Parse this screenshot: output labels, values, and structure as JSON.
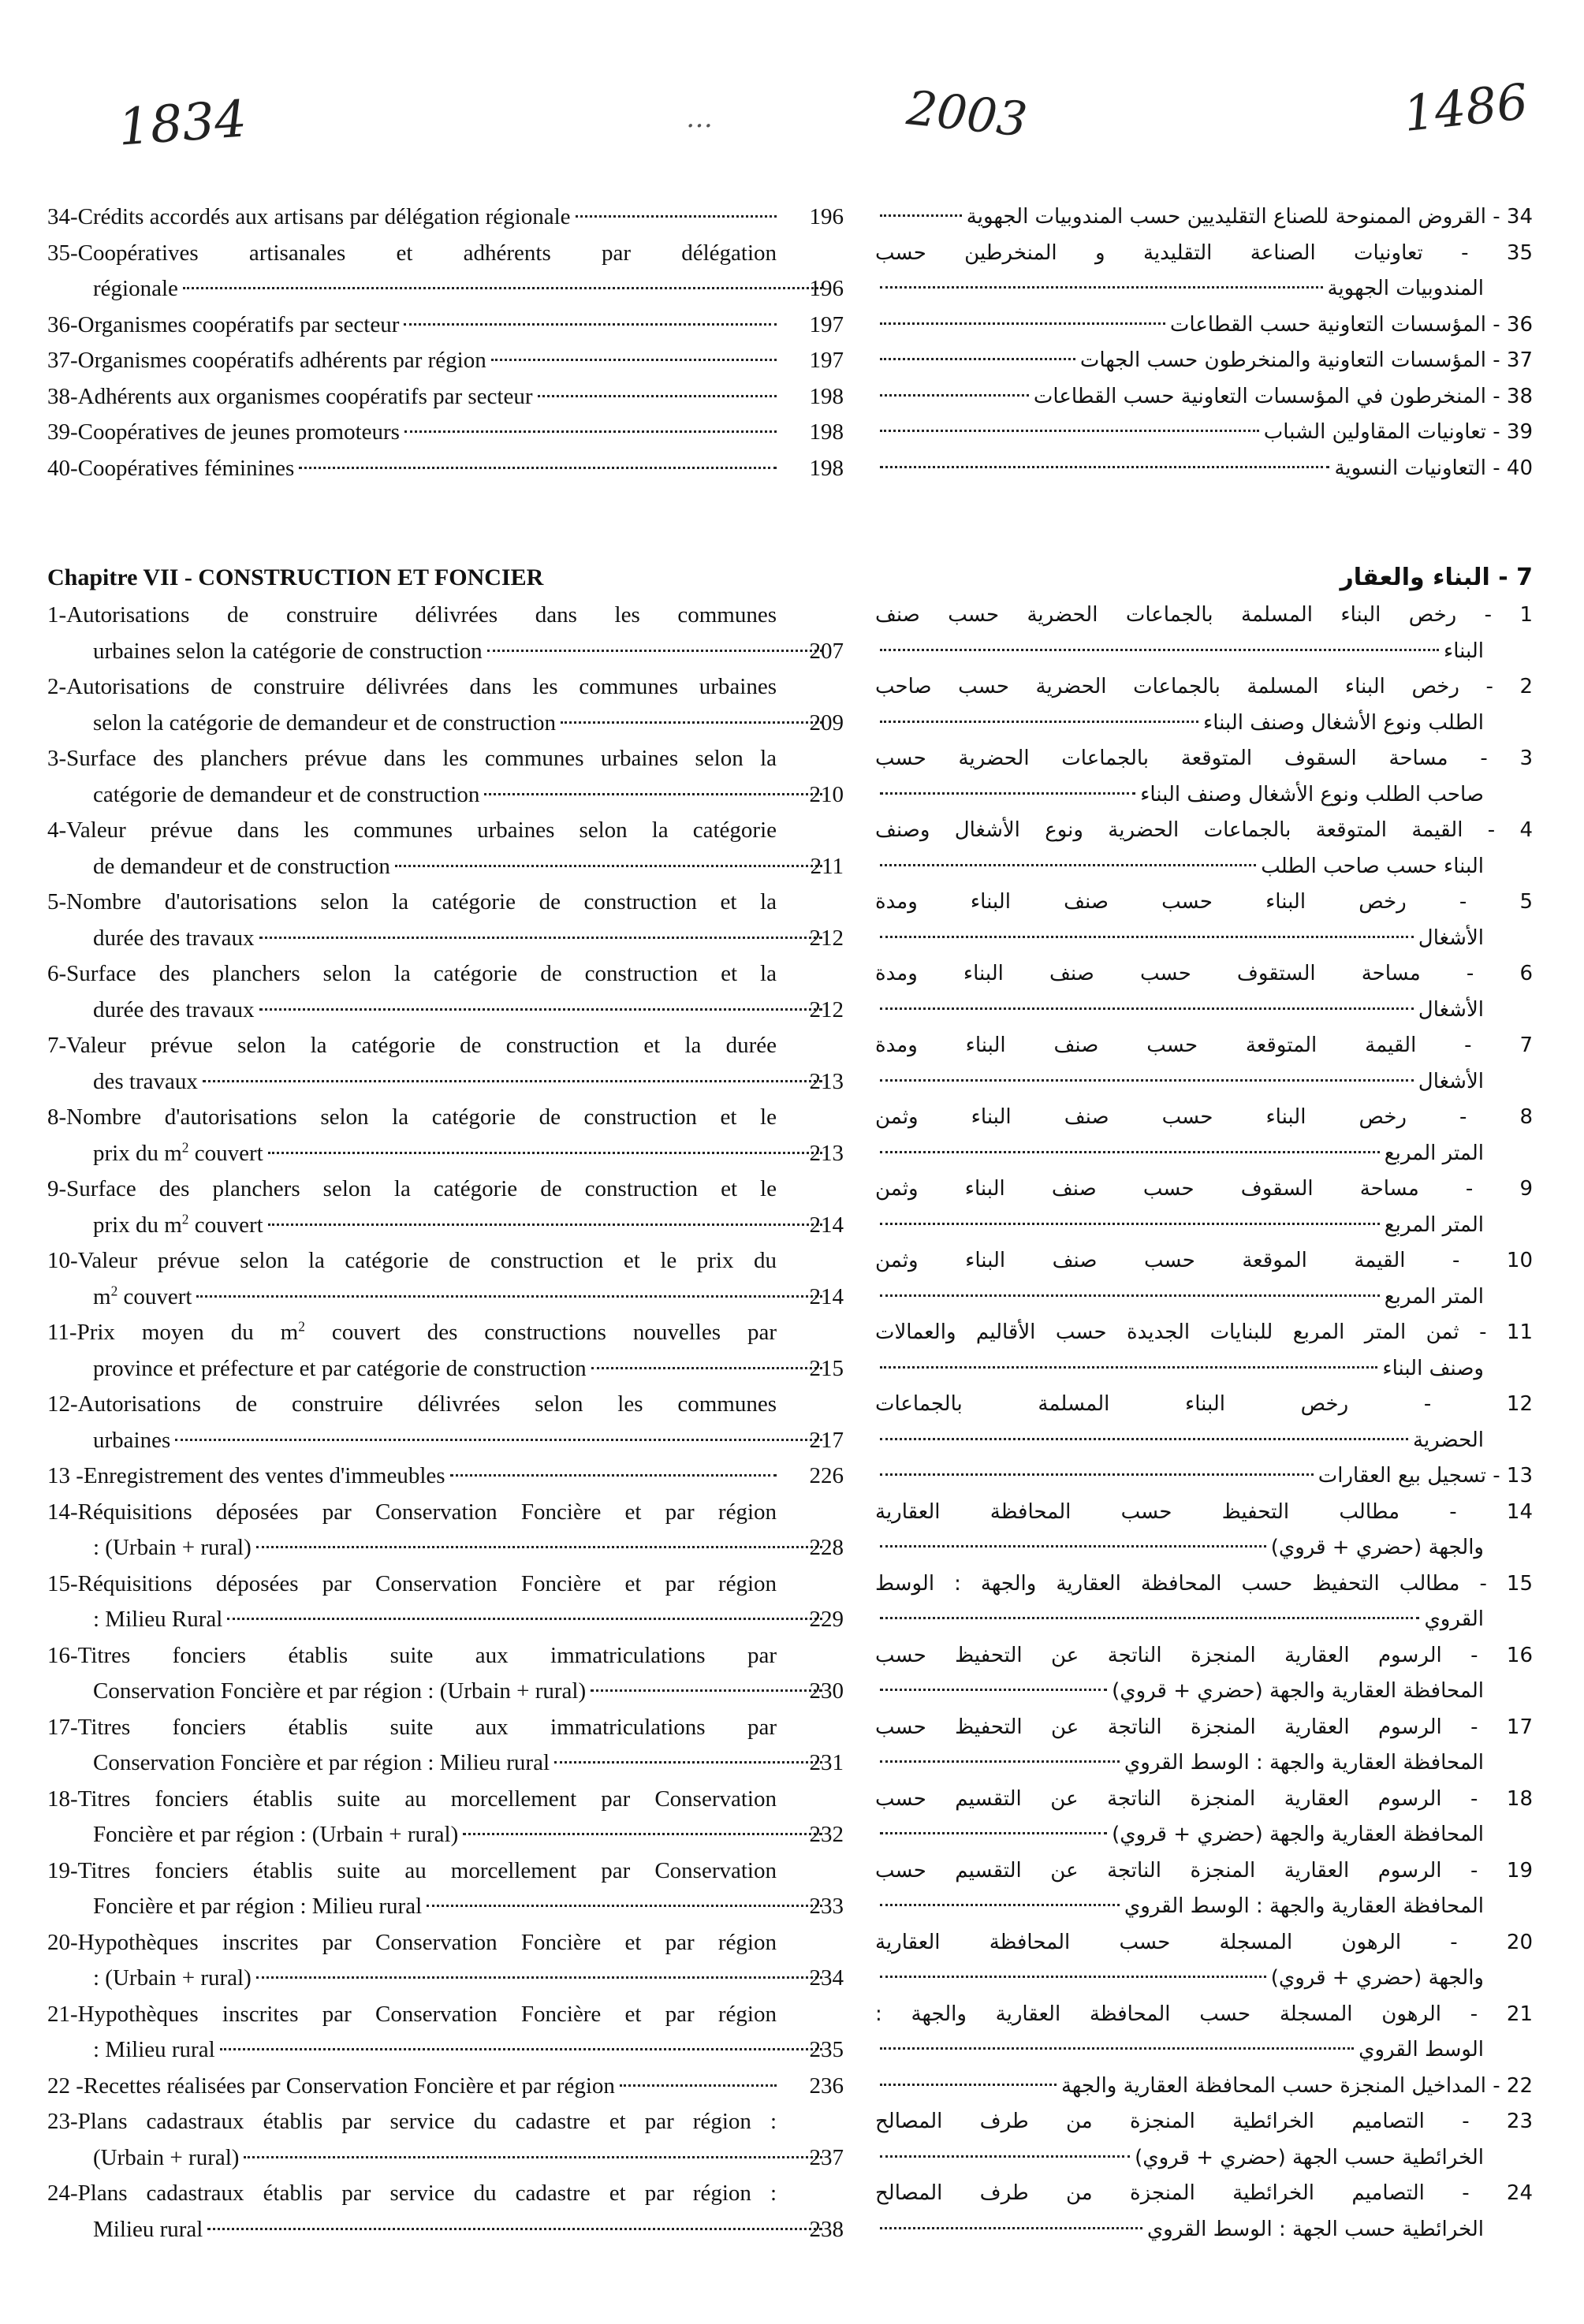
{
  "handwritten_annotations": [
    "1834",
    "…",
    "2003",
    "1486"
  ],
  "french": {
    "entries_before": [
      {
        "lines": [
          "34-Crédits accordés aux artisans par délégation régionale"
        ],
        "page": "196"
      },
      {
        "lines": [
          "35-Coopératives artisanales et adhérents par délégation",
          "régionale"
        ],
        "page": "196"
      },
      {
        "lines": [
          "36-Organismes coopératifs par secteur"
        ],
        "page": "197"
      },
      {
        "lines": [
          "37-Organismes coopératifs adhérents par région"
        ],
        "page": "197"
      },
      {
        "lines": [
          "38-Adhérents aux organismes coopératifs par secteur"
        ],
        "page": "198"
      },
      {
        "lines": [
          "39-Coopératives de jeunes promoteurs"
        ],
        "page": "198"
      },
      {
        "lines": [
          "40-Coopératives féminines"
        ],
        "page": "198"
      }
    ],
    "chapter_title": "Chapitre VII - CONSTRUCTION ET FONCIER",
    "entries": [
      {
        "lines": [
          "1-Autorisations de construire délivrées dans les communes",
          "urbaines selon la catégorie de construction"
        ],
        "page": "207"
      },
      {
        "lines": [
          "2-Autorisations de construire délivrées dans les communes urbaines",
          "selon la catégorie de demandeur et de construction"
        ],
        "page": "209"
      },
      {
        "lines": [
          "3-Surface des planchers prévue dans les communes urbaines selon la",
          "catégorie de demandeur et de construction"
        ],
        "page": "210"
      },
      {
        "lines": [
          "4-Valeur prévue dans les communes urbaines selon la catégorie",
          "de demandeur et de construction"
        ],
        "page": "211"
      },
      {
        "lines": [
          "5-Nombre d'autorisations selon la catégorie de construction et la",
          "durée des travaux"
        ],
        "page": "212"
      },
      {
        "lines": [
          "6-Surface des planchers selon la catégorie de construction et la",
          "durée des travaux"
        ],
        "page": "212"
      },
      {
        "lines": [
          "7-Valeur prévue selon la catégorie de construction et la durée",
          "des travaux"
        ],
        "page": "213"
      },
      {
        "lines": [
          "8-Nombre d'autorisations selon la catégorie de construction et le",
          "prix du m² couvert"
        ],
        "page": "213"
      },
      {
        "lines": [
          "9-Surface des planchers selon la catégorie de construction et le",
          "prix du m² couvert"
        ],
        "page": "214"
      },
      {
        "lines": [
          "10-Valeur prévue selon la catégorie de construction et le prix du",
          "m² couvert"
        ],
        "page": "214"
      },
      {
        "lines": [
          "11-Prix moyen du m² couvert des constructions nouvelles par",
          "province et préfecture et par catégorie de construction"
        ],
        "page": "215"
      },
      {
        "lines": [
          "12-Autorisations de construire délivrées selon les communes",
          "urbaines"
        ],
        "page": "217"
      },
      {
        "lines": [
          "13 -Enregistrement des ventes d'immeubles"
        ],
        "page": "226"
      },
      {
        "lines": [
          "14-Réquisitions déposées par Conservation Foncière et par région",
          ": (Urbain + rural)"
        ],
        "page": "228"
      },
      {
        "lines": [
          "15-Réquisitions déposées par Conservation Foncière et par région",
          ": Milieu Rural"
        ],
        "page": "229"
      },
      {
        "lines": [
          "16-Titres fonciers établis suite aux immatriculations par",
          "Conservation Foncière et par région : (Urbain + rural)"
        ],
        "page": "230"
      },
      {
        "lines": [
          "17-Titres fonciers établis suite aux immatriculations par",
          "Conservation Foncière et par région : Milieu rural"
        ],
        "page": "231"
      },
      {
        "lines": [
          "18-Titres fonciers établis suite au morcellement par Conservation",
          "Foncière et par région : (Urbain + rural)"
        ],
        "page": "232"
      },
      {
        "lines": [
          "19-Titres fonciers établis suite au morcellement par Conservation",
          "Foncière et par région : Milieu rural"
        ],
        "page": "233"
      },
      {
        "lines": [
          "20-Hypothèques inscrites par Conservation Foncière et par région",
          ": (Urbain + rural)"
        ],
        "page": "234"
      },
      {
        "lines": [
          "21-Hypothèques inscrites par Conservation Foncière et par région",
          ": Milieu rural"
        ],
        "page": "235"
      },
      {
        "lines": [
          "22 -Recettes réalisées par Conservation Foncière et par région"
        ],
        "page": "236"
      },
      {
        "lines": [
          "23-Plans cadastraux établis par service du cadastre et par région :",
          "(Urbain + rural)"
        ],
        "page": "237"
      },
      {
        "lines": [
          "24-Plans cadastraux établis par service du cadastre et par région :",
          "Milieu rural"
        ],
        "page": "238"
      }
    ]
  },
  "arabic": {
    "entries_before": [
      {
        "lines": [
          "34 - القروض الممنوحة للصناع التقليديين حسب المندوبيات الجهوية"
        ]
      },
      {
        "lines": [
          "35 - تعاونيات الصناعة التقليدية و المنخرطين حسب",
          "المندوبيات الجهوية"
        ]
      },
      {
        "lines": [
          "36 - المؤسسات التعاونية حسب القطاعات"
        ]
      },
      {
        "lines": [
          "37 - المؤسسات التعاونية والمنخرطون حسب الجهات"
        ]
      },
      {
        "lines": [
          "38 - المنخرطون في المؤسسات التعاونية حسب القطاعات"
        ]
      },
      {
        "lines": [
          "39 - تعاونيات المقاولين الشباب"
        ]
      },
      {
        "lines": [
          "40 - التعاونيات النسوية"
        ]
      }
    ],
    "chapter_title": "7 - البناء والعقار",
    "entries": [
      {
        "lines": [
          "1 - رخص البناء المسلمة بالجماعات الحضرية حسب صنف",
          "البناء"
        ]
      },
      {
        "lines": [
          "2 - رخص البناء المسلمة بالجماعات الحضرية حسب صاحب",
          "الطلب ونوع الأشغال وصنف البناء"
        ]
      },
      {
        "lines": [
          "3 - مساحة السقوف المتوقعة بالجماعات الحضرية حسب",
          "صاحب الطلب ونوع الأشغال وصنف البناء"
        ]
      },
      {
        "lines": [
          "4 - القيمة المتوقعة بالجماعات الحضرية ونوع الأشغال وصنف",
          "البناء حسب صاحب الطلب"
        ]
      },
      {
        "lines": [
          "5 - رخص البناء حسب صنف البناء ومدة",
          "الأشغال"
        ]
      },
      {
        "lines": [
          "6 - مساحة الستقوف حسب صنف البناء ومدة",
          "الأشغال"
        ]
      },
      {
        "lines": [
          "7 - القيمة المتوقعة حسب صنف البناء ومدة",
          "الأشغال"
        ]
      },
      {
        "lines": [
          "8 - رخص البناء حسب صنف البناء وثمن",
          "المتر المربع"
        ]
      },
      {
        "lines": [
          "9 - مساحة السقوف حسب صنف البناء وثمن",
          "المتر المربع"
        ]
      },
      {
        "lines": [
          "10 - القيمة الموقعة حسب صنف البناء وثمن",
          "المتر المربع"
        ]
      },
      {
        "lines": [
          "11 - ثمن المتر المربع للبنايات الجديدة حسب الأقاليم والعمالات",
          "وصنف البناء"
        ]
      },
      {
        "lines": [
          "12 - رخص البناء المسلمة بالجماعات",
          "الحضرية"
        ]
      },
      {
        "lines": [
          "13 - تسجيل بيع العقارات"
        ]
      },
      {
        "lines": [
          "14 - مطالب التحفيظ حسب المحافظة العقارية",
          "والجهة (حضري + قروي)"
        ]
      },
      {
        "lines": [
          "15 - مطالب التحفيظ حسب المحافظة العقارية والجهة : الوسط",
          "القروي"
        ]
      },
      {
        "lines": [
          "16 - الرسوم العقارية المنجزة الناتجة عن التحفيظ حسب",
          "المحافظة العقارية والجهة (حضري + قروي)"
        ]
      },
      {
        "lines": [
          "17 - الرسوم العقارية المنجزة الناتجة عن التحفيظ حسب",
          "المحافظة العقارية والجهة : الوسط القروي"
        ]
      },
      {
        "lines": [
          "18 - الرسوم العقارية المنجزة الناتجة عن التقسيم حسب",
          "المحافظة العقارية والجهة (حضري + قروي)"
        ]
      },
      {
        "lines": [
          "19 - الرسوم العقارية المنجزة الناتجة عن التقسيم حسب",
          "المحافظة العقارية والجهة : الوسط القروي"
        ]
      },
      {
        "lines": [
          "20 - الرهون المسجلة حسب المحافظة العقارية",
          "والجهة (حضري + قروي)"
        ]
      },
      {
        "lines": [
          "21 - الرهون المسجلة حسب المحافظة العقارية والجهة :",
          "الوسط القروي"
        ]
      },
      {
        "lines": [
          "22 - المداخيل المنجزة حسب المحافظة العقارية والجهة"
        ]
      },
      {
        "lines": [
          "23 - التصاميم الخرائطية المنجزة من طرف المصالح",
          "الخرائطية حسب الجهة (حضري + قروي)"
        ]
      },
      {
        "lines": [
          "24 - التصاميم الخرائطية المنجزة من طرف المصالح",
          "الخرائطية حسب الجهة : الوسط القروي"
        ]
      }
    ]
  }
}
